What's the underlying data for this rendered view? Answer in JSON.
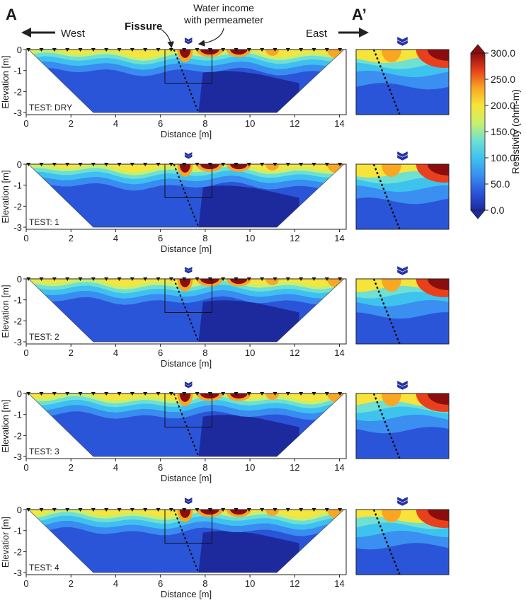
{
  "figure": {
    "profile_start_label": "A",
    "profile_end_label": "A’",
    "west_label": "West",
    "east_label": "East",
    "fissure_label": "Fissure",
    "water_label_line1": "Water income",
    "water_label_line2": "with permeameter"
  },
  "colorbar": {
    "title": "Resistivity (ohm-m)",
    "ticks": [
      "300.0",
      "250.0",
      "200.0",
      "150.0",
      "100.0",
      "50.0",
      "0.0"
    ],
    "colors": [
      "#1d2a9e",
      "#2a55d8",
      "#3a8ff0",
      "#3ec3ef",
      "#6fe0d2",
      "#c9f06a",
      "#f7e43a",
      "#f9a623",
      "#e8401c",
      "#8b0d0d"
    ]
  },
  "chart_data": {
    "type": "heatmap",
    "description_units": "Electrical resistivity tomography sections, resistivity in ohm-m",
    "xlabel": "Distance [m]",
    "ylabel": "Elevation [m]",
    "xlim": [
      0,
      14.3
    ],
    "ylim": [
      -3.1,
      0
    ],
    "xticks": [
      "0",
      "2",
      "4",
      "6",
      "8",
      "10",
      "12",
      "14"
    ],
    "yticks": [
      "0",
      "-1",
      "-2",
      "-3"
    ],
    "zoom_box": {
      "x": [
        6.2,
        8.3
      ],
      "y": [
        -1.6,
        0
      ]
    },
    "fissure_line": {
      "x": [
        6.6,
        7.7
      ],
      "y": [
        0,
        -3
      ]
    },
    "water_injection_x": 7.25,
    "color_range": [
      0,
      300
    ],
    "panels": [
      {
        "test": "TEST: DRY",
        "ylabel": "Elevation [m]"
      },
      {
        "test": "TEST: 1",
        "ylabel": "Elevation [m]"
      },
      {
        "test": "TEST: 2",
        "ylabel": "Elevation [m]"
      },
      {
        "test": "TEST: 3",
        "ylabel": "Elevation [m]"
      },
      {
        "test": "TEST: 4",
        "ylabel": "Elevatior [m]"
      }
    ]
  }
}
